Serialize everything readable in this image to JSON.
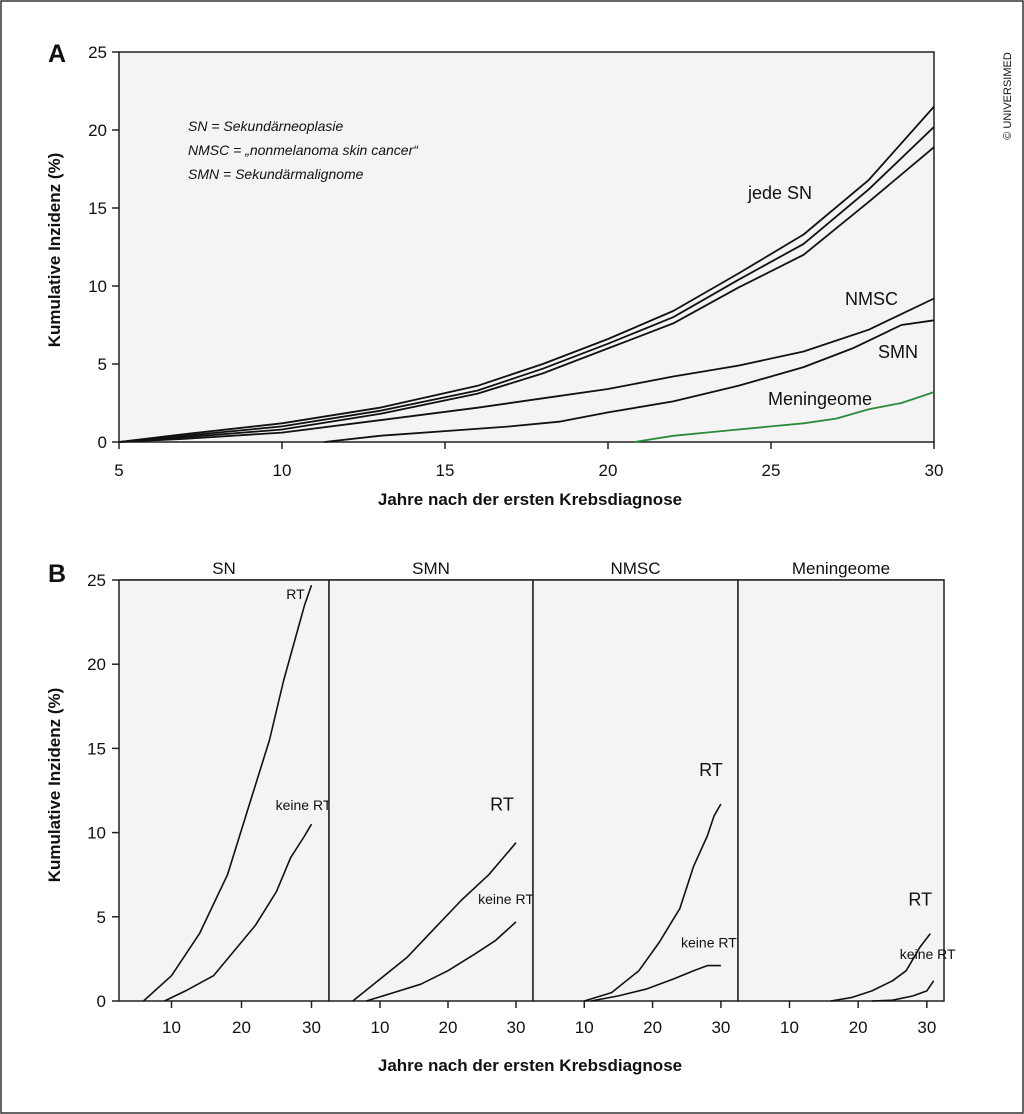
{
  "credit": "© UNIVERSIMED",
  "chart_data": [
    {
      "panel": "A",
      "type": "line",
      "xlabel": "Jahre nach der ersten Krebsdiagnose",
      "ylabel": "Kumulative Inzidenz (%)",
      "xlim": [
        5,
        30
      ],
      "ylim": [
        0,
        25
      ],
      "xticks": [
        "5",
        "10",
        "15",
        "20",
        "25",
        "30"
      ],
      "yticks": [
        "0",
        "5",
        "10",
        "15",
        "20",
        "25"
      ],
      "grid": false,
      "legend_notes": [
        "SN = Sekundärneoplasie",
        "NMSC = „nonmelanoma skin cancer“",
        "SMN = Sekundärmalignome"
      ],
      "series": [
        {
          "name": "jede SN",
          "color": "#111111",
          "x": [
            5,
            7,
            10,
            13,
            16,
            18,
            20,
            22,
            24,
            26,
            28,
            30
          ],
          "y": [
            0,
            0.5,
            1.2,
            2.2,
            3.6,
            5,
            6.6,
            8.4,
            10.8,
            13.3,
            16.8,
            21.5
          ]
        },
        {
          "name": "",
          "color": "#111111",
          "x": [
            5,
            7,
            10,
            13,
            16,
            18,
            20,
            22,
            24,
            26,
            28,
            30
          ],
          "y": [
            0,
            0.4,
            1,
            2,
            3.3,
            4.7,
            6.3,
            8,
            10.4,
            12.7,
            16.2,
            20.2
          ]
        },
        {
          "name": "",
          "color": "#111111",
          "x": [
            5,
            7,
            10,
            13,
            16,
            18,
            20,
            22,
            24,
            26,
            28,
            30
          ],
          "y": [
            0,
            0.3,
            0.8,
            1.8,
            3.1,
            4.4,
            6,
            7.6,
            9.9,
            12,
            15.4,
            18.9
          ]
        },
        {
          "name": "NMSC",
          "color": "#111111",
          "x": [
            5,
            7,
            10,
            13,
            16,
            18,
            20,
            22,
            24,
            26,
            28,
            30
          ],
          "y": [
            0,
            0.2,
            0.6,
            1.4,
            2.2,
            2.8,
            3.4,
            4.2,
            4.9,
            5.8,
            7.2,
            9.2
          ]
        },
        {
          "name": "SMN",
          "color": "#111111",
          "x": [
            11.3,
            13,
            15,
            17,
            18.5,
            20,
            22,
            24,
            26,
            27.5,
            29,
            30
          ],
          "y": [
            0,
            0.4,
            0.7,
            1,
            1.3,
            1.9,
            2.6,
            3.6,
            4.8,
            6,
            7.5,
            7.8
          ]
        },
        {
          "name": "Meningeome",
          "color": "#2a8a3a",
          "x": [
            20.8,
            22,
            23,
            24,
            25,
            26,
            27,
            28,
            29,
            30
          ],
          "y": [
            0,
            0.4,
            0.6,
            0.8,
            1,
            1.2,
            1.5,
            2.1,
            2.5,
            3.2
          ]
        }
      ]
    },
    {
      "panel": "B",
      "type": "line",
      "xlabel": "Jahre nach der ersten Krebsdiagnose",
      "ylabel": "Kumulative Inzidenz (%)",
      "ylim": [
        0,
        25
      ],
      "yticks": [
        "0",
        "5",
        "10",
        "15",
        "20",
        "25"
      ],
      "xticks": [
        "10",
        "20",
        "30"
      ],
      "facets": [
        {
          "title": "SN",
          "series": [
            {
              "name": "RT",
              "x": [
                6,
                10,
                14,
                18,
                21,
                24,
                26,
                28,
                29,
                30
              ],
              "y": [
                0,
                1.5,
                4,
                7.5,
                11.5,
                15.5,
                19,
                22,
                23.5,
                24.7
              ]
            },
            {
              "name": "keine RT",
              "x": [
                9,
                12,
                16,
                19,
                22,
                25,
                27,
                29,
                30
              ],
              "y": [
                0,
                0.6,
                1.5,
                3,
                4.5,
                6.5,
                8.5,
                9.8,
                10.5
              ]
            }
          ]
        },
        {
          "title": "SMN",
          "series": [
            {
              "name": "RT",
              "x": [
                6,
                10,
                14,
                18,
                22,
                26,
                30
              ],
              "y": [
                0,
                1.3,
                2.6,
                4.3,
                6,
                7.5,
                9.4
              ]
            },
            {
              "name": "keine RT",
              "x": [
                8,
                12,
                16,
                20,
                24,
                27,
                30
              ],
              "y": [
                0,
                0.5,
                1,
                1.8,
                2.8,
                3.6,
                4.7
              ]
            }
          ]
        },
        {
          "title": "NMSC",
          "series": [
            {
              "name": "RT",
              "x": [
                10,
                14,
                18,
                21,
                24,
                26,
                28,
                29,
                30
              ],
              "y": [
                0,
                0.5,
                1.8,
                3.5,
                5.5,
                8,
                9.8,
                11,
                11.7
              ]
            },
            {
              "name": "keine RT",
              "x": [
                11,
                15,
                19,
                23,
                26,
                28,
                30
              ],
              "y": [
                0,
                0.3,
                0.7,
                1.3,
                1.8,
                2.1,
                2.1
              ]
            }
          ]
        },
        {
          "title": "Meningeome",
          "series": [
            {
              "name": "RT",
              "x": [
                16,
                19,
                22,
                25,
                27,
                29,
                30.5
              ],
              "y": [
                0,
                0.2,
                0.6,
                1.2,
                1.8,
                3.2,
                4
              ]
            },
            {
              "name": "keine RT",
              "x": [
                22,
                25,
                28,
                30,
                31
              ],
              "y": [
                0,
                0.05,
                0.3,
                0.6,
                1.2
              ]
            }
          ]
        }
      ]
    }
  ]
}
